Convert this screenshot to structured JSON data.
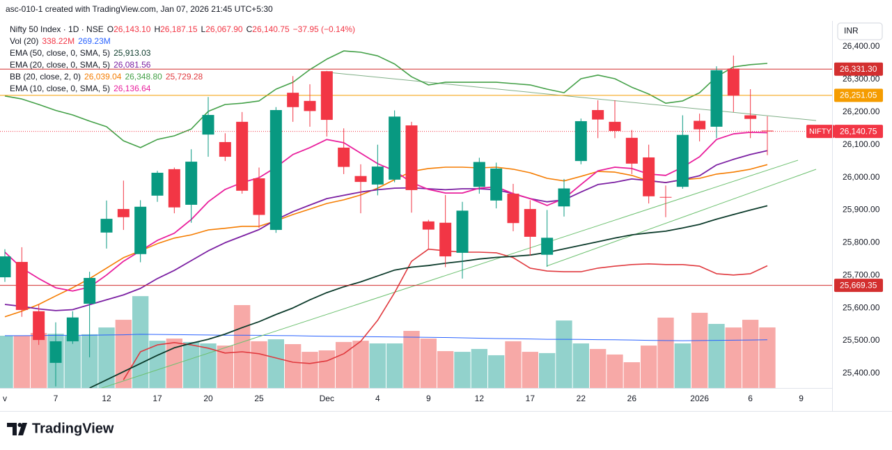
{
  "chart_data": {
    "type": "candlestick",
    "title": "asc-010-1 created with TradingView.com, Jan 07, 2026 21:45 UTC+5:30",
    "symbol": "Nifty 50 Index · 1D · NSE",
    "ohlc_letters": [
      "O",
      "H",
      "L",
      "C"
    ],
    "ohlc_labels": [
      "26,143.10",
      "26,187.15",
      "26,067.90",
      "26,140.75"
    ],
    "change_label": "−37.95 (−0.14%)",
    "currency": "INR",
    "brand": "TradingView",
    "up_color": "#089981",
    "down_color": "#f23645",
    "categories": [
      "v",
      null,
      null,
      "7",
      null,
      null,
      "12",
      null,
      null,
      "17",
      null,
      null,
      "20",
      null,
      null,
      "25",
      null,
      null,
      null,
      "Dec",
      null,
      null,
      "4",
      null,
      null,
      "9",
      null,
      null,
      "12",
      null,
      null,
      "17",
      null,
      null,
      "22",
      null,
      null,
      "26",
      null,
      null,
      null,
      "2026",
      null,
      null,
      "6",
      null,
      null,
      "9"
    ],
    "open": [
      25694,
      25741,
      25590,
      25432,
      25498,
      25613,
      25831,
      25903,
      25765,
      25944,
      26025,
      25916,
      26131,
      26108,
      26170,
      25997,
      25839,
      26259,
      26234,
      26325,
      26091,
      26004,
      25978,
      25993,
      26159,
      25865,
      25861,
      25769,
      25971,
      25929,
      25950,
      25903,
      25763,
      25911,
      26050,
      26206,
      26170,
      26121,
      26061,
      25940,
      25971,
      26173,
      26155,
      26333,
      26190,
      26143.1,
      null,
      null
    ],
    "high": [
      25780,
      25786,
      25611,
      25556,
      25590,
      25711,
      25929,
      25990,
      25930,
      26020,
      26030,
      26086,
      26246,
      26135,
      26200,
      26030,
      26215,
      26310,
      26285,
      26326,
      26150,
      26040,
      26100,
      26205,
      26170,
      25870,
      25946,
      25925,
      26060,
      26045,
      25980,
      25930,
      25900,
      25995,
      26180,
      26236,
      26236,
      26145,
      26100,
      25975,
      26190,
      26195,
      26340,
      26373,
      26270,
      26187.15,
      null,
      null
    ],
    "low": [
      25680,
      25573,
      25487,
      25360,
      25490,
      25449,
      25782,
      25839,
      25740,
      25925,
      25890,
      25861,
      26063,
      26050,
      25950,
      25845,
      25830,
      26170,
      26155,
      26125,
      26010,
      25890,
      25945,
      25985,
      25892,
      25780,
      25725,
      25690,
      25950,
      25905,
      25835,
      25760,
      25726,
      25880,
      26040,
      26120,
      26120,
      26010,
      25920,
      25878,
      25965,
      26110,
      26120,
      26200,
      26120,
      26067.9,
      null,
      null
    ],
    "close": [
      25758,
      25594,
      25502,
      25498,
      25571,
      25692,
      25873,
      25878,
      25910,
      26014,
      25908,
      26048,
      26191,
      26063,
      25959,
      25885,
      26206,
      26215,
      26203,
      26176,
      26032,
      25986,
      26033,
      26186,
      25961,
      25840,
      25758,
      25898,
      26047,
      26027,
      25860,
      25818,
      25815,
      25966,
      26172,
      26177,
      26142,
      26042,
      25942,
      25938,
      26130,
      26147,
      26328,
      26250,
      26179,
      26140.75,
      null,
      null
    ],
    "ylim": [
      25355,
      26479
    ],
    "yticks": [
      {
        "value": 25400,
        "label": "25,400.00"
      },
      {
        "value": 25500,
        "label": "25,500.00"
      },
      {
        "value": 25600,
        "label": "25,600.00"
      },
      {
        "value": 25700,
        "label": "25,700.00"
      },
      {
        "value": 25800,
        "label": "25,800.00"
      },
      {
        "value": 25900,
        "label": "25,900.00"
      },
      {
        "value": 26000,
        "label": "26,000.00"
      },
      {
        "value": 26100,
        "label": "26,100.00"
      },
      {
        "value": 26200,
        "label": "26,200.00"
      },
      {
        "value": 26300,
        "label": "26,300.00"
      },
      {
        "value": 26400,
        "label": "26,400.00"
      }
    ],
    "y2lim": [
      0,
      2050
    ],
    "volume": {
      "name": "Vol (20)",
      "up_color": "#92d2cc",
      "down_color": "#f7a9a7",
      "value_label": "338.22M",
      "values": [
        292,
        292,
        307,
        303,
        292,
        300,
        338,
        381,
        513,
        264,
        276,
        257,
        249,
        237,
        463,
        261,
        272,
        245,
        202,
        210,
        257,
        264,
        249,
        249,
        319,
        276,
        206,
        202,
        218,
        183,
        261,
        202,
        195,
        377,
        249,
        218,
        187,
        144,
        237,
        393,
        249,
        420,
        358,
        338,
        381,
        338.22,
        null,
        null
      ],
      "ma": {
        "color": "#2962ff",
        "value_label": "269.23M",
        "values": [
          292,
          292,
          293,
          294,
          294,
          295,
          296,
          297,
          300,
          299,
          298,
          297,
          296,
          295,
          295,
          294,
          293,
          292,
          290,
          289,
          288,
          287,
          286,
          285,
          284,
          283,
          282,
          280,
          278,
          276,
          275,
          274,
          272,
          272,
          271,
          270,
          269,
          268,
          266,
          265,
          264,
          265,
          266,
          267,
          268,
          269.23,
          null,
          null
        ]
      }
    },
    "overlays": [
      {
        "name": "EMA (50, close, 0, SMA, 5)",
        "color": "#0b3a2a",
        "value_label": "25,913.03",
        "values": [
          null,
          null,
          null,
          null,
          null,
          25355,
          25380,
          25405,
          25430,
          25455,
          25478,
          25492,
          25504,
          25520,
          25540,
          25558,
          25580,
          25600,
          25625,
          25647,
          25665,
          25680,
          25698,
          25716,
          25725,
          25730,
          25737,
          25743,
          25750,
          25755,
          25758,
          25762,
          25770,
          25781,
          25792,
          25803,
          25814,
          25824,
          25830,
          25835,
          25845,
          25856,
          25872,
          25886,
          25900,
          25913.03,
          null,
          null
        ]
      },
      {
        "name": "EMA (20, close, 0, SMA, 5)",
        "color": "#7b1fa2",
        "value_label": "26,081.56",
        "values": [
          25611,
          25605,
          25597,
          25592,
          25595,
          25610,
          25625,
          25640,
          25660,
          25690,
          25715,
          25745,
          25775,
          25800,
          25820,
          25840,
          25870,
          25895,
          25915,
          25935,
          25945,
          25955,
          25962,
          25967,
          25968,
          25965,
          25962,
          25965,
          25965,
          25962,
          25950,
          25935,
          25925,
          25931,
          25955,
          25978,
          25985,
          25995,
          25990,
          25984,
          25993,
          26005,
          26038,
          26055,
          26070,
          26081.56,
          null,
          null
        ]
      },
      {
        "name": "EMA (10, close, 0, SMA, 5)",
        "color": "#e91e9c",
        "value_label": "26,136.64",
        "values": [
          25771,
          25722,
          25690,
          25662,
          25652,
          25664,
          25701,
          25743,
          25775,
          25807,
          25829,
          25871,
          25925,
          25963,
          25984,
          25999,
          26031,
          26070,
          26091,
          26116,
          26106,
          26074,
          26042,
          26020,
          25984,
          25963,
          25952,
          25952,
          25967,
          25971,
          25950,
          25935,
          25914,
          25935,
          25978,
          26020,
          26031,
          26027,
          26010,
          26006,
          26031,
          26063,
          26116,
          26133,
          26138,
          26136.64,
          null,
          null
        ]
      }
    ],
    "bb": {
      "name": "BB (20, close, 2, 0)",
      "series": [
        {
          "color": "#f57c00",
          "value_label": "26,039.04",
          "values": [
            25573,
            25590,
            25611,
            25637,
            25662,
            25690,
            25722,
            25754,
            25775,
            25797,
            25814,
            25824,
            25839,
            25844,
            25850,
            25850,
            25867,
            25886,
            25903,
            25920,
            25931,
            25946,
            25967,
            25993,
            26018,
            26027,
            26031,
            26031,
            26029,
            26031,
            26025,
            26014,
            25997,
            25989,
            26003,
            26018,
            26016,
            26006,
            25989,
            25984,
            25993,
            25997,
            26010,
            26016,
            26025,
            26039.04,
            null,
            null
          ]
        },
        {
          "color": "#43a047",
          "value_label": "26,348.80",
          "values": [
            26249,
            26240,
            26223,
            26205,
            26191,
            26172,
            26155,
            26112,
            26091,
            26116,
            26127,
            26148,
            26202,
            26223,
            26227,
            26234,
            26270,
            26291,
            26330,
            26362,
            26387,
            26383,
            26372,
            26347,
            26308,
            26283,
            26291,
            26291,
            26291,
            26291,
            26287,
            26283,
            26270,
            26259,
            26302,
            26313,
            26302,
            26276,
            26255,
            26227,
            26234,
            26259,
            26308,
            26338,
            26345,
            26348.8,
            null,
            null
          ]
        },
        {
          "color": "#e0393e",
          "value_label": "25,729.28",
          "values": [
            null,
            null,
            null,
            null,
            null,
            null,
            null,
            25380,
            25466,
            25487,
            25494,
            25487,
            25477,
            25462,
            25466,
            25460,
            25447,
            25434,
            25430,
            25438,
            25460,
            25498,
            25562,
            25647,
            25743,
            25780,
            25775,
            25771,
            25771,
            25769,
            25754,
            25722,
            25713,
            25711,
            25711,
            25722,
            25728,
            25733,
            25735,
            25733,
            25733,
            25728,
            25705,
            25701,
            25705,
            25729.28,
            null,
            null
          ]
        }
      ]
    },
    "levels": [
      {
        "value": 26331.3,
        "label": "26,331.30",
        "color": "#d32f2f"
      },
      {
        "value": 26251.05,
        "label": "26,251.05",
        "color": "#f59c00"
      },
      {
        "value": 25669.35,
        "label": "25,669.35",
        "color": "#d32f2f"
      }
    ],
    "last_price": {
      "symbol": "NIFTY",
      "label": "26,140.75"
    }
  }
}
